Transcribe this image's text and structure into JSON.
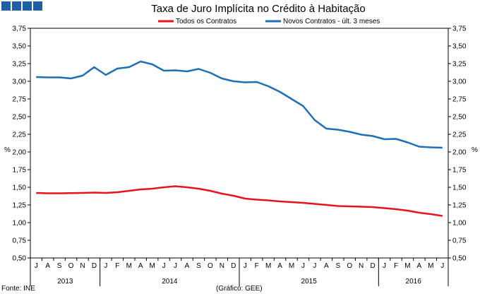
{
  "chart_data": {
    "type": "line",
    "title": "Taxa de Juro Implícita no Crédito à Habitação",
    "ylabel": "%",
    "ylim": [
      0.5,
      3.75
    ],
    "yticks": [
      "0,50",
      "0,75",
      "1,00",
      "1,25",
      "1,50",
      "1,75",
      "2,00",
      "2,25",
      "2,50",
      "2,75",
      "3,00",
      "3,25",
      "3,50",
      "3,75"
    ],
    "months": [
      "J",
      "A",
      "S",
      "O",
      "N",
      "D",
      "J",
      "F",
      "M",
      "A",
      "M",
      "J",
      "J",
      "A",
      "S",
      "O",
      "N",
      "D",
      "J",
      "F",
      "M",
      "A",
      "M",
      "J",
      "J",
      "A",
      "S",
      "O",
      "N",
      "D",
      "J",
      "F",
      "M",
      "A",
      "M",
      "J"
    ],
    "years": [
      {
        "label": "2013",
        "start": 0,
        "end": 6
      },
      {
        "label": "2014",
        "start": 6,
        "end": 18
      },
      {
        "label": "2015",
        "start": 18,
        "end": 30
      },
      {
        "label": "2016",
        "start": 30,
        "end": 36
      }
    ],
    "legend_position": "top-center",
    "series": [
      {
        "name": "Todos os Contratos",
        "color": "#e8141b",
        "values": [
          1.42,
          1.415,
          1.415,
          1.418,
          1.42,
          1.425,
          1.42,
          1.43,
          1.45,
          1.47,
          1.48,
          1.5,
          1.515,
          1.5,
          1.48,
          1.45,
          1.41,
          1.38,
          1.34,
          1.325,
          1.315,
          1.3,
          1.29,
          1.28,
          1.265,
          1.25,
          1.235,
          1.23,
          1.225,
          1.22,
          1.205,
          1.19,
          1.17,
          1.14,
          1.12,
          1.095
        ]
      },
      {
        "name": "Novos Contratos - últ. 3 meses",
        "color": "#1f6fb8",
        "values": [
          3.06,
          3.055,
          3.055,
          3.04,
          3.08,
          3.2,
          3.09,
          3.18,
          3.2,
          3.28,
          3.24,
          3.15,
          3.155,
          3.14,
          3.175,
          3.12,
          3.04,
          3.0,
          2.985,
          2.99,
          2.93,
          2.85,
          2.75,
          2.65,
          2.45,
          2.33,
          2.315,
          2.285,
          2.245,
          2.225,
          2.18,
          2.185,
          2.135,
          2.075,
          2.065,
          2.06
        ]
      }
    ]
  },
  "header": {
    "logo_squares": [
      "#1f5fa8",
      "#1f5fa8",
      "#1f5fa8",
      "#1f5fa8"
    ]
  },
  "footer": {
    "source": "Fonte: INE",
    "credit": "(Gráfico: GEE)"
  }
}
